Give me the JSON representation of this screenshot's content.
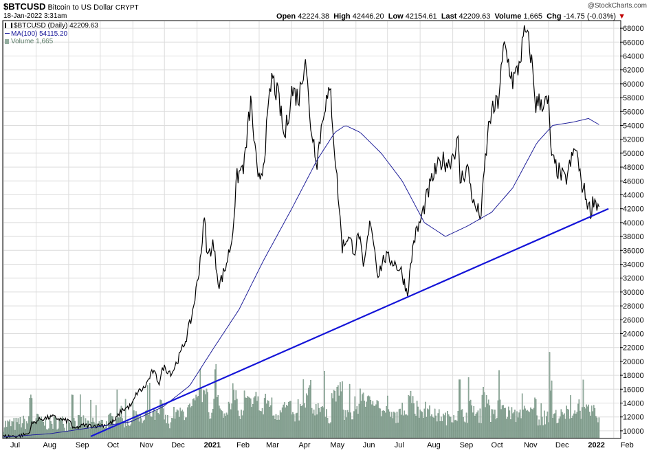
{
  "header": {
    "symbol": "$BTCUSD",
    "name": "Bitcoin to US Dollar",
    "exchange": "CRYPT",
    "date": "18-Jan-2022 3:31am",
    "watermark": "@StockCharts.com",
    "open_label": "Open",
    "open": "42224.38",
    "high_label": "High",
    "high": "42446.20",
    "low_label": "Low",
    "low": "42154.61",
    "last_label": "Last",
    "last": "42209.63",
    "volume_label": "Volume",
    "volume": "1,665",
    "chg_label": "Chg",
    "chg": "-14.75 (-0.03%)",
    "down_arrow": "▼"
  },
  "legend": [
    {
      "label": "$BTCUSD (Daily) 42209.63",
      "color": "#000000"
    },
    {
      "label": "MA(100) 54115.20",
      "color": "#1a1a9a"
    },
    {
      "label": "Volume 1,665",
      "color": "#5a7a66"
    }
  ],
  "colors": {
    "price": "#000000",
    "ma": "#20209a",
    "trendline": "#1414d8",
    "volume": "#93ad9f",
    "volume_edge": "#5f7f6c",
    "grid": "#dcdcdc"
  },
  "chart_data": {
    "type": "line",
    "y_axis": {
      "position": "right",
      "range": [
        9000,
        69000
      ],
      "ticks": [
        10000,
        12000,
        14000,
        16000,
        18000,
        20000,
        22000,
        24000,
        26000,
        28000,
        30000,
        32000,
        34000,
        36000,
        38000,
        40000,
        42000,
        44000,
        46000,
        48000,
        50000,
        52000,
        54000,
        56000,
        58000,
        60000,
        62000,
        64000,
        66000,
        68000
      ]
    },
    "x_axis": {
      "range": [
        "2020-07-01",
        "2022-02-07"
      ],
      "tick_labels": [
        {
          "date": "2020-07-01",
          "label": "Jul"
        },
        {
          "date": "2020-08-01",
          "label": "Aug"
        },
        {
          "date": "2020-09-01",
          "label": "Sep"
        },
        {
          "date": "2020-10-01",
          "label": "Oct"
        },
        {
          "date": "2020-11-01",
          "label": "Nov"
        },
        {
          "date": "2020-12-01",
          "label": "Dec"
        },
        {
          "date": "2021-01-01",
          "label": "2021"
        },
        {
          "date": "2021-02-01",
          "label": "Feb"
        },
        {
          "date": "2021-03-01",
          "label": "Mar"
        },
        {
          "date": "2021-04-01",
          "label": "Apr"
        },
        {
          "date": "2021-05-01",
          "label": "May"
        },
        {
          "date": "2021-06-01",
          "label": "Jun"
        },
        {
          "date": "2021-07-01",
          "label": "Jul"
        },
        {
          "date": "2021-08-01",
          "label": "Aug"
        },
        {
          "date": "2021-09-01",
          "label": "Sep"
        },
        {
          "date": "2021-10-01",
          "label": "Oct"
        },
        {
          "date": "2021-11-01",
          "label": "Nov"
        },
        {
          "date": "2021-12-01",
          "label": "Dec"
        },
        {
          "date": "2022-01-01",
          "label": "2022"
        },
        {
          "date": "2022-02-01",
          "label": "Feb"
        }
      ]
    },
    "grid": true,
    "series": [
      {
        "name": "$BTCUSD (Daily)",
        "kind": "price",
        "points": [
          [
            "2020-07-01",
            9200
          ],
          [
            "2020-07-15",
            9250
          ],
          [
            "2020-07-25",
            9600
          ],
          [
            "2020-07-28",
            11000
          ],
          [
            "2020-08-05",
            11700
          ],
          [
            "2020-08-17",
            12000
          ],
          [
            "2020-08-28",
            11500
          ],
          [
            "2020-09-03",
            11400
          ],
          [
            "2020-09-05",
            10200
          ],
          [
            "2020-09-15",
            10800
          ],
          [
            "2020-09-25",
            10700
          ],
          [
            "2020-10-08",
            10900
          ],
          [
            "2020-10-15",
            11500
          ],
          [
            "2020-10-21",
            12900
          ],
          [
            "2020-10-31",
            13700
          ],
          [
            "2020-11-05",
            15500
          ],
          [
            "2020-11-12",
            16200
          ],
          [
            "2020-11-20",
            18600
          ],
          [
            "2020-11-26",
            17000
          ],
          [
            "2020-11-30",
            19200
          ],
          [
            "2020-12-08",
            18300
          ],
          [
            "2020-12-16",
            21000
          ],
          [
            "2020-12-22",
            23500
          ],
          [
            "2020-12-27",
            26500
          ],
          [
            "2021-01-02",
            32000
          ],
          [
            "2021-01-08",
            40500
          ],
          [
            "2021-01-11",
            35000
          ],
          [
            "2021-01-16",
            37000
          ],
          [
            "2021-01-22",
            31000
          ],
          [
            "2021-01-28",
            33500
          ],
          [
            "2021-02-03",
            37500
          ],
          [
            "2021-02-08",
            46500
          ],
          [
            "2021-02-15",
            48500
          ],
          [
            "2021-02-21",
            57500
          ],
          [
            "2021-02-28",
            45500
          ],
          [
            "2021-03-05",
            48500
          ],
          [
            "2021-03-13",
            61000
          ],
          [
            "2021-03-20",
            57500
          ],
          [
            "2021-03-25",
            52000
          ],
          [
            "2021-04-01",
            59000
          ],
          [
            "2021-04-08",
            58000
          ],
          [
            "2021-04-14",
            64500
          ],
          [
            "2021-04-18",
            55000
          ],
          [
            "2021-04-25",
            49000
          ],
          [
            "2021-05-02",
            57000
          ],
          [
            "2021-05-08",
            58500
          ],
          [
            "2021-05-12",
            50000
          ],
          [
            "2021-05-19",
            36500
          ],
          [
            "2021-05-24",
            38000
          ],
          [
            "2021-05-31",
            36000
          ],
          [
            "2021-06-04",
            38500
          ],
          [
            "2021-06-08",
            33000
          ],
          [
            "2021-06-15",
            40500
          ],
          [
            "2021-06-22",
            32500
          ],
          [
            "2021-06-28",
            35000
          ],
          [
            "2021-07-06",
            34500
          ],
          [
            "2021-07-14",
            33000
          ],
          [
            "2021-07-20",
            29800
          ],
          [
            "2021-07-26",
            37500
          ],
          [
            "2021-08-01",
            40000
          ],
          [
            "2021-08-07",
            43500
          ],
          [
            "2021-08-14",
            47000
          ],
          [
            "2021-08-22",
            49000
          ],
          [
            "2021-08-28",
            48500
          ],
          [
            "2021-09-06",
            51500
          ],
          [
            "2021-09-08",
            46000
          ],
          [
            "2021-09-15",
            48000
          ],
          [
            "2021-09-21",
            42500
          ],
          [
            "2021-09-28",
            41000
          ],
          [
            "2021-10-01",
            47500
          ],
          [
            "2021-10-06",
            55000
          ],
          [
            "2021-10-14",
            57500
          ],
          [
            "2021-10-20",
            65500
          ],
          [
            "2021-10-28",
            60500
          ],
          [
            "2021-11-01",
            61500
          ],
          [
            "2021-11-09",
            67500
          ],
          [
            "2021-11-14",
            64500
          ],
          [
            "2021-11-19",
            57000
          ],
          [
            "2021-11-24",
            57500
          ],
          [
            "2021-12-01",
            57000
          ],
          [
            "2021-12-04",
            49000
          ],
          [
            "2021-12-10",
            47500
          ],
          [
            "2021-12-17",
            46000
          ],
          [
            "2021-12-27",
            51000
          ],
          [
            "2021-12-31",
            46500
          ],
          [
            "2022-01-07",
            43000
          ],
          [
            "2022-01-10",
            41500
          ],
          [
            "2022-01-13",
            43500
          ],
          [
            "2022-01-18",
            42209.63
          ]
        ]
      },
      {
        "name": "MA(100)",
        "kind": "ma",
        "points": [
          [
            "2020-07-01",
            9100
          ],
          [
            "2020-08-15",
            9600
          ],
          [
            "2020-09-20",
            10400
          ],
          [
            "2020-10-30",
            11300
          ],
          [
            "2020-11-30",
            13500
          ],
          [
            "2020-12-25",
            16500
          ],
          [
            "2021-01-15",
            21500
          ],
          [
            "2021-02-10",
            27500
          ],
          [
            "2021-03-05",
            34500
          ],
          [
            "2021-04-01",
            42000
          ],
          [
            "2021-04-25",
            49000
          ],
          [
            "2021-05-12",
            53000
          ],
          [
            "2021-05-22",
            54000
          ],
          [
            "2021-06-05",
            53000
          ],
          [
            "2021-06-25",
            50000
          ],
          [
            "2021-07-15",
            46000
          ],
          [
            "2021-08-05",
            40000
          ],
          [
            "2021-08-25",
            38000
          ],
          [
            "2021-09-15",
            39500
          ],
          [
            "2021-10-08",
            41500
          ],
          [
            "2021-10-28",
            45000
          ],
          [
            "2021-11-20",
            51500
          ],
          [
            "2021-12-05",
            54000
          ],
          [
            "2021-12-25",
            54500
          ],
          [
            "2022-01-08",
            55000
          ],
          [
            "2022-01-18",
            54115.2
          ]
        ]
      },
      {
        "name": "Trendline",
        "kind": "trendline",
        "points": [
          [
            "2020-09-22",
            9200
          ],
          [
            "2022-01-27",
            42000
          ]
        ]
      },
      {
        "name": "Volume",
        "kind": "volume",
        "max_value_label": "Volume 1,665"
      }
    ]
  }
}
